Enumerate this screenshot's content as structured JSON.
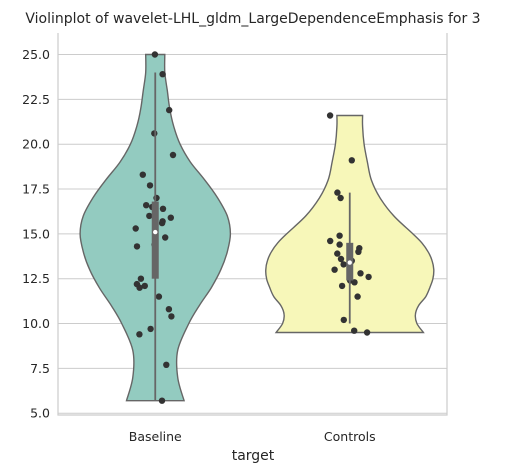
{
  "chart_data": {
    "type": "violin",
    "title": "Violinplot of wavelet-LHL_gldm_LargeDependenceEmphasis for 3",
    "xlabel": "target",
    "ylabel": "",
    "categories": [
      "Baseline",
      "Controls"
    ],
    "ylim": [
      4.9,
      26.2
    ],
    "yticks": [
      5.0,
      7.5,
      10.0,
      12.5,
      15.0,
      17.5,
      20.0,
      22.5,
      25.0
    ],
    "ytick_labels": [
      "5.0",
      "7.5",
      "10.0",
      "12.5",
      "15.0",
      "17.5",
      "20.0",
      "22.5",
      "25.0"
    ],
    "grid": true,
    "colors": {
      "Baseline": "#93cbc0",
      "Controls": "#f7f7b9",
      "outline": "#666666",
      "points": "#333333",
      "grid": "#cccccc"
    },
    "series": [
      {
        "category": "Baseline",
        "values": [
          25.0,
          23.9,
          21.9,
          20.6,
          19.4,
          18.3,
          17.7,
          17.0,
          16.6,
          16.5,
          16.4,
          16.0,
          15.9,
          15.7,
          15.6,
          15.3,
          14.8,
          14.4,
          14.3,
          12.5,
          12.2,
          12.1,
          12.0,
          11.5,
          10.8,
          10.4,
          9.7,
          9.4,
          7.7,
          5.7
        ],
        "whisker_low": 5.7,
        "whisker_high": 24.0,
        "q1": 12.5,
        "median": 15.1,
        "q3": 16.8,
        "violin_profile": [
          [
            5.7,
            0.36
          ],
          [
            7.0,
            0.28
          ],
          [
            8.5,
            0.28
          ],
          [
            10.0,
            0.42
          ],
          [
            11.0,
            0.55
          ],
          [
            12.0,
            0.7
          ],
          [
            13.0,
            0.82
          ],
          [
            14.0,
            0.9
          ],
          [
            15.0,
            0.94
          ],
          [
            16.0,
            0.9
          ],
          [
            17.0,
            0.78
          ],
          [
            18.0,
            0.62
          ],
          [
            19.0,
            0.44
          ],
          [
            20.0,
            0.31
          ],
          [
            21.0,
            0.23
          ],
          [
            22.0,
            0.18
          ],
          [
            23.0,
            0.15
          ],
          [
            24.0,
            0.12
          ],
          [
            25.0,
            0.12
          ]
        ]
      },
      {
        "category": "Controls",
        "values": [
          21.6,
          19.1,
          17.3,
          17.0,
          14.9,
          14.6,
          14.4,
          14.2,
          14.0,
          13.9,
          13.6,
          13.5,
          13.3,
          13.0,
          12.8,
          12.6,
          12.4,
          12.3,
          12.1,
          11.5,
          10.2,
          9.6,
          9.5
        ],
        "whisker_low": 10.0,
        "whisker_high": 17.3,
        "q1": 12.4,
        "median": 13.4,
        "q3": 14.5,
        "violin_profile": [
          [
            9.5,
            0.92
          ],
          [
            10.0,
            0.84
          ],
          [
            10.5,
            0.82
          ],
          [
            11.0,
            0.86
          ],
          [
            11.5,
            0.95
          ],
          [
            12.0,
            1.0
          ],
          [
            12.5,
            1.04
          ],
          [
            13.0,
            1.05
          ],
          [
            13.5,
            1.03
          ],
          [
            14.0,
            0.98
          ],
          [
            14.5,
            0.9
          ],
          [
            15.0,
            0.79
          ],
          [
            16.0,
            0.55
          ],
          [
            17.0,
            0.38
          ],
          [
            18.0,
            0.27
          ],
          [
            19.0,
            0.22
          ],
          [
            20.0,
            0.18
          ],
          [
            21.0,
            0.16
          ],
          [
            21.6,
            0.16
          ]
        ]
      }
    ]
  }
}
